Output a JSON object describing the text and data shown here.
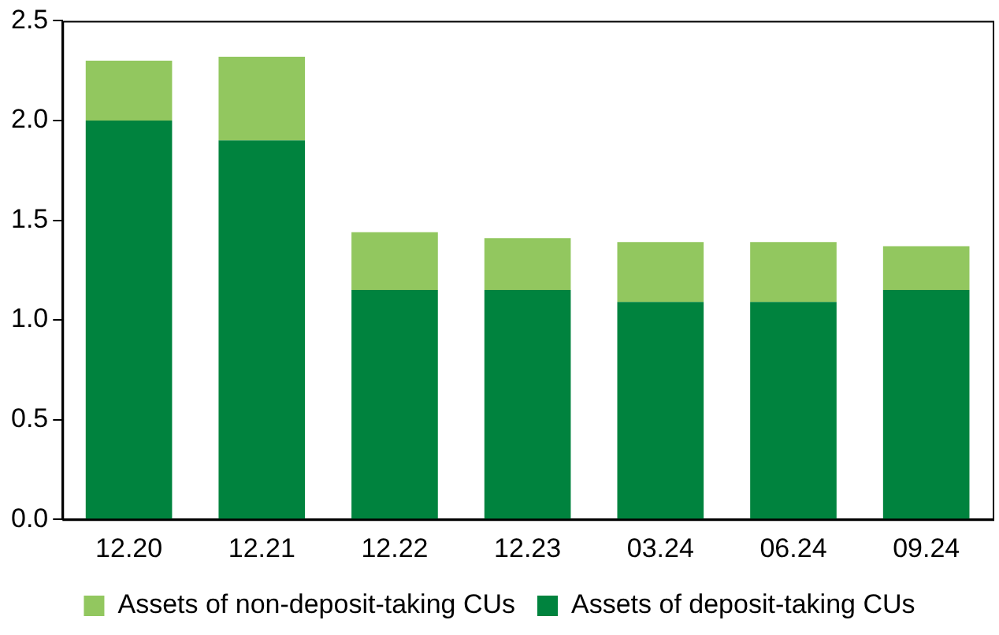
{
  "chart_data": {
    "type": "bar",
    "stacked": true,
    "categories": [
      "12.20",
      "12.21",
      "12.22",
      "12.23",
      "03.24",
      "06.24",
      "09.24"
    ],
    "series": [
      {
        "name": "Assets of deposit-taking CUs",
        "color": "#00833e",
        "values": [
          2.0,
          1.9,
          1.15,
          1.15,
          1.09,
          1.09,
          1.15
        ]
      },
      {
        "name": "Assets of non-deposit-taking CUs",
        "color": "#92c75f",
        "values": [
          0.3,
          0.42,
          0.29,
          0.26,
          0.3,
          0.3,
          0.22
        ]
      }
    ],
    "ylim": [
      0,
      2.5
    ],
    "yticks": [
      {
        "value": 0,
        "label": "0.0"
      },
      {
        "value": 0.5,
        "label": "0.5"
      },
      {
        "value": 1,
        "label": "1.0"
      },
      {
        "value": 1.5,
        "label": "1.5"
      },
      {
        "value": 2,
        "label": "2.0"
      },
      {
        "value": 2.5,
        "label": "2.5"
      }
    ],
    "grid": false,
    "legend": "bottom"
  }
}
